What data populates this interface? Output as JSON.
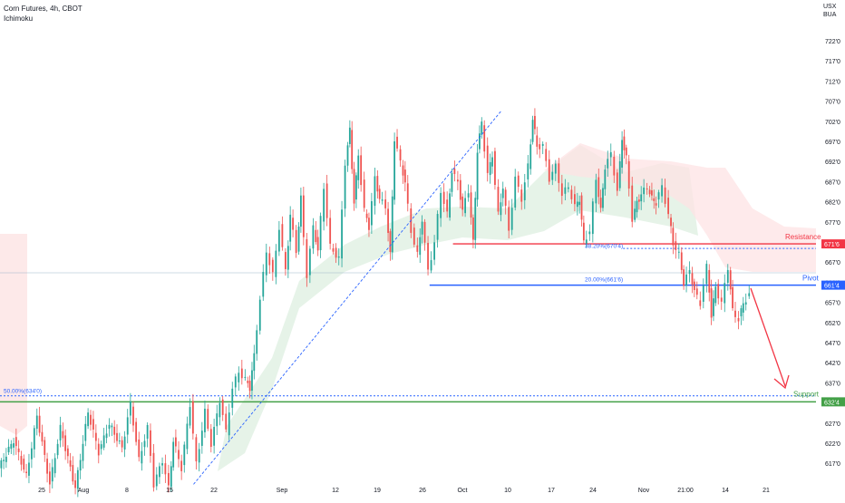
{
  "header": {
    "title": "Corn Futures, 4h, CBOT",
    "indicator": "Ichimoku"
  },
  "axis_header": {
    "currency": "USX",
    "unit": "BUA"
  },
  "colors": {
    "up": "#26a69a",
    "down": "#ef5350",
    "resistance": "#f23645",
    "pivot": "#2962ff",
    "support": "#43a047",
    "fib": "#2962ff",
    "arrow": "#f23645",
    "cloud_green": "#e3f2e6",
    "cloud_red": "#fde3e4",
    "baseline": "#9db8c9"
  },
  "chart_data": {
    "type": "candlestick",
    "title": "Corn Futures, 4h, CBOT",
    "indicator": "Ichimoku",
    "ylim": [
      610,
      725
    ],
    "y_ticks": [
      "722'0",
      "717'0",
      "712'0",
      "707'0",
      "702'0",
      "697'0",
      "692'0",
      "687'0",
      "682'0",
      "677'0",
      "672'0",
      "667'0",
      "662'0",
      "657'0",
      "652'0",
      "647'0",
      "642'0",
      "637'0",
      "632'0",
      "627'0",
      "622'0",
      "617'0"
    ],
    "x_ticks": [
      "25",
      "Aug",
      "8",
      "15",
      "22",
      "Sep",
      "12",
      "19",
      "26",
      "Oct",
      "10",
      "17",
      "24",
      "Nov",
      "21:00",
      "14",
      "21"
    ],
    "levels": {
      "resistance": {
        "label": "Resistance",
        "price_label": "671'6",
        "value": 671.75
      },
      "pivot": {
        "label": "Pivot",
        "price_label": "661'4",
        "value": 661.5
      },
      "support": {
        "label": "Support",
        "price_label": "632'4",
        "value": 632.5
      }
    },
    "fib_labels": [
      {
        "text": "38.20%(670'4)",
        "value": 670.5
      },
      {
        "text": "20.00%(661'6)",
        "value": 661.75
      },
      {
        "text": "50.00%(634'0)",
        "value": 634.0
      }
    ],
    "price_path": [
      [
        0,
        616
      ],
      [
        7,
        623
      ],
      [
        13,
        614
      ],
      [
        18,
        629
      ],
      [
        24,
        612
      ],
      [
        29,
        626
      ],
      [
        36,
        611
      ],
      [
        42,
        630
      ],
      [
        47,
        620
      ],
      [
        52,
        627
      ],
      [
        58,
        621
      ],
      [
        62,
        632
      ],
      [
        66,
        618
      ],
      [
        70,
        626
      ],
      [
        73,
        612
      ],
      [
        77,
        618
      ],
      [
        80,
        611
      ],
      [
        82,
        623
      ],
      [
        86,
        616
      ],
      [
        90,
        632
      ],
      [
        93,
        617
      ],
      [
        97,
        630
      ],
      [
        100,
        622
      ],
      [
        104,
        633
      ],
      [
        107,
        625
      ],
      [
        110,
        636
      ],
      [
        113,
        640
      ],
      [
        116,
        638
      ],
      [
        118,
        636
      ],
      [
        120,
        644
      ],
      [
        123,
        658
      ],
      [
        126,
        670
      ],
      [
        129,
        664
      ],
      [
        132,
        676
      ],
      [
        135,
        665
      ],
      [
        137,
        679
      ],
      [
        140,
        670
      ],
      [
        142,
        683
      ],
      [
        145,
        664
      ],
      [
        148,
        676
      ],
      [
        150,
        670
      ],
      [
        153,
        686
      ],
      [
        156,
        671
      ],
      [
        160,
        668
      ],
      [
        163,
        692
      ],
      [
        165,
        700
      ],
      [
        167,
        682
      ],
      [
        169,
        694
      ],
      [
        172,
        680
      ],
      [
        174,
        676
      ],
      [
        177,
        688
      ],
      [
        179,
        683
      ],
      [
        182,
        681
      ],
      [
        184,
        669
      ],
      [
        186,
        698
      ],
      [
        189,
        692
      ],
      [
        191,
        687
      ],
      [
        194,
        675
      ],
      [
        197,
        669
      ],
      [
        199,
        678
      ],
      [
        202,
        665
      ],
      [
        205,
        672
      ],
      [
        208,
        685
      ],
      [
        211,
        679
      ],
      [
        213,
        690
      ],
      [
        216,
        687
      ],
      [
        218,
        680
      ],
      [
        221,
        685
      ],
      [
        223,
        672
      ],
      [
        225,
        695
      ],
      [
        227,
        702
      ],
      [
        230,
        689
      ],
      [
        232,
        694
      ],
      [
        235,
        679
      ],
      [
        237,
        686
      ],
      [
        240,
        675
      ],
      [
        243,
        688
      ],
      [
        246,
        683
      ],
      [
        249,
        691
      ],
      [
        251,
        703
      ],
      [
        253,
        696
      ],
      [
        256,
        696
      ],
      [
        259,
        688
      ],
      [
        262,
        691
      ],
      [
        265,
        684
      ],
      [
        268,
        686
      ],
      [
        271,
        681
      ],
      [
        273,
        683
      ],
      [
        275,
        672
      ],
      [
        278,
        675
      ],
      [
        281,
        688
      ],
      [
        283,
        680
      ],
      [
        285,
        691
      ],
      [
        288,
        694
      ],
      [
        291,
        685
      ],
      [
        293,
        698
      ],
      [
        295,
        693
      ],
      [
        298,
        678
      ],
      [
        300,
        682
      ],
      [
        302,
        684
      ],
      [
        305,
        686
      ],
      [
        307,
        683
      ],
      [
        309,
        682
      ],
      [
        312,
        686
      ],
      [
        315,
        679
      ],
      [
        317,
        672
      ],
      [
        320,
        669
      ],
      [
        322,
        662
      ],
      [
        325,
        665
      ],
      [
        327,
        660
      ],
      [
        330,
        657
      ],
      [
        333,
        666
      ],
      [
        335,
        654
      ],
      [
        337,
        661
      ],
      [
        340,
        657
      ],
      [
        343,
        666
      ],
      [
        345,
        655
      ],
      [
        348,
        653
      ],
      [
        350,
        657
      ],
      [
        353,
        659
      ]
    ]
  }
}
